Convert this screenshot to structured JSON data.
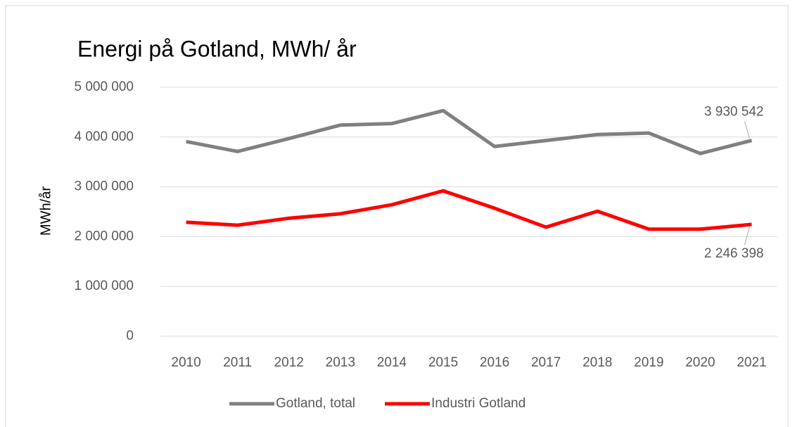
{
  "chart_data": {
    "type": "line",
    "title": "Energi på Gotland, MWh/ år",
    "y_label": "MWh/år",
    "categories": [
      "2010",
      "2011",
      "2012",
      "2013",
      "2014",
      "2015",
      "2016",
      "2017",
      "2018",
      "2019",
      "2020",
      "2021"
    ],
    "series": [
      {
        "name": "Gotland, total",
        "color": "#808080",
        "values": [
          3910000,
          3710000,
          3970000,
          4240000,
          4270000,
          4530000,
          3810000,
          3930000,
          4050000,
          4080000,
          3670000,
          3930542
        ],
        "value_labels": [
          null,
          null,
          null,
          null,
          null,
          null,
          null,
          null,
          null,
          null,
          null,
          "3 930 542"
        ]
      },
      {
        "name": "Industri Gotland",
        "color": "#ff0000",
        "values": [
          2290000,
          2230000,
          2370000,
          2460000,
          2640000,
          2920000,
          2570000,
          2190000,
          2510000,
          2150000,
          2150000,
          2246398
        ],
        "value_labels": [
          null,
          null,
          null,
          null,
          null,
          null,
          null,
          null,
          null,
          null,
          null,
          "2 246 398"
        ]
      }
    ],
    "ylim": [
      0,
      5000000
    ],
    "yticks": [
      0,
      {
        "value": 1000000,
        "label": "1 000 000"
      },
      {
        "value": 2000000,
        "label": "2 000 000"
      },
      {
        "value": 3000000,
        "label": "3 000 000"
      },
      {
        "value": 4000000,
        "label": "4 000 000"
      },
      {
        "value": 5000000,
        "label": "5 000 000"
      }
    ],
    "grid": true,
    "legend": "bottom"
  }
}
